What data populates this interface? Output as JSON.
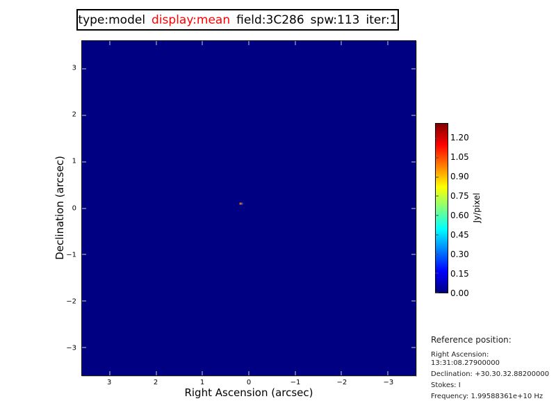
{
  "figure": {
    "title": {
      "segments": [
        {
          "text": "type:model",
          "color": "#000000"
        },
        {
          "text": "display:mean",
          "color": "#ff0000"
        },
        {
          "text": "field:3C286",
          "color": "#000000"
        },
        {
          "text": "spw:113",
          "color": "#000000"
        },
        {
          "text": "iter:1",
          "color": "#000000"
        }
      ]
    }
  },
  "chart_data": {
    "type": "heatmap",
    "title": "type:model display:mean field:3C286 spw:113 iter:1",
    "xlabel": "Right Ascension (arcsec)",
    "ylabel": "Declination (arcsec)",
    "xlim": [
      3.6,
      -3.6
    ],
    "ylim": [
      -3.6,
      3.6
    ],
    "x_ticks": [
      3,
      2,
      1,
      0,
      -1,
      -2,
      -3
    ],
    "x_tick_labels": [
      "3",
      "2",
      "1",
      "0",
      "−1",
      "−2",
      "−3"
    ],
    "y_ticks": [
      3,
      2,
      1,
      0,
      -1,
      -2,
      -3
    ],
    "y_tick_labels": [
      "3",
      "2",
      "1",
      "0",
      "−1",
      "−2",
      "−3"
    ],
    "grid": false,
    "colormap": "jet",
    "background_value": 0.0,
    "background_color": "#000083",
    "colorbar": {
      "label": "Jy/pixel",
      "ticks": [
        1.2,
        1.05,
        0.9,
        0.75,
        0.6,
        0.45,
        0.3,
        0.15,
        0.0
      ],
      "tick_labels": [
        "1.20",
        "1.05",
        "0.90",
        "0.75",
        "0.60",
        "0.45",
        "0.30",
        "0.15",
        "0.00"
      ],
      "vmin": 0.0,
      "vmax": 1.315
    },
    "source_point": {
      "ra_arcsec": 0.16,
      "dec_arcsec": 0.1,
      "pixels": [
        {
          "color": "#d2691e",
          "approx_value_jy_per_pixel": 0.95
        },
        {
          "color": "#2a52be",
          "approx_value_jy_per_pixel": 0.25
        }
      ]
    }
  },
  "reference": {
    "heading": "Reference position:",
    "lines": [
      "Right Ascension: 13:31:08.27900000",
      "Declination: +30.30.32.88200000",
      "Stokes: I",
      "Frequency: 1.99588361e+10 Hz"
    ]
  }
}
